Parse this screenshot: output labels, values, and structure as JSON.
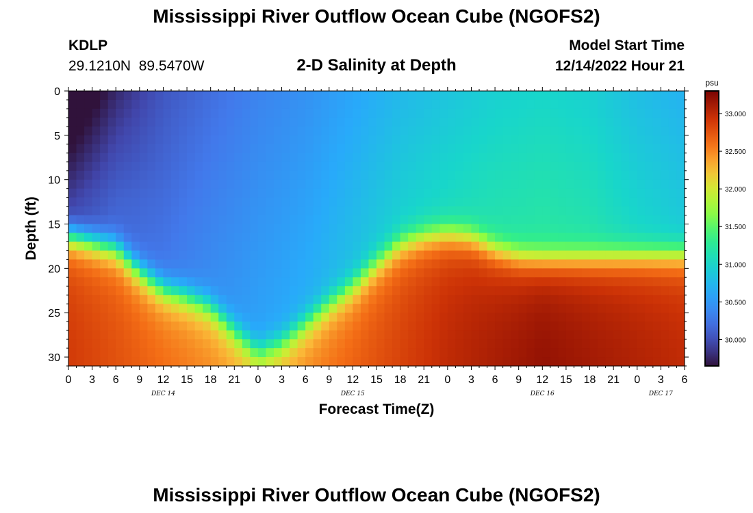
{
  "header": {
    "title": "Mississippi River Outflow Ocean Cube (NGOFS2)",
    "station": "KDLP",
    "coords": "29.1210N  89.5470W",
    "subtitle": "2-D Salinity at Depth",
    "model_label": "Model Start Time",
    "model_time": "12/14/2022 Hour 21"
  },
  "footer": {
    "title": "Mississippi River Outflow Ocean Cube (NGOFS2)"
  },
  "chart_data": {
    "type": "heatmap",
    "xlabel": "Forecast Time(Z)",
    "ylabel": "Depth (ft)",
    "x_ticks": [
      "0",
      "3",
      "6",
      "9",
      "12",
      "15",
      "18",
      "21",
      "0",
      "3",
      "6",
      "9",
      "12",
      "15",
      "18",
      "21",
      "0",
      "3",
      "6",
      "9",
      "12",
      "15",
      "18",
      "21",
      "0",
      "3",
      "6"
    ],
    "x_date_labels": [
      {
        "label": "DEC 14",
        "hour": 12
      },
      {
        "label": "DEC 15",
        "hour": 36
      },
      {
        "label": "DEC 16",
        "hour": 60
      },
      {
        "label": "DEC 17",
        "hour": 75
      }
    ],
    "xlim_hours": [
      0,
      78
    ],
    "y_ticks": [
      0,
      5,
      10,
      15,
      20,
      25,
      30
    ],
    "ylim": [
      0,
      31
    ],
    "y_inverted": true,
    "colorbar": {
      "unit": "psu",
      "range": [
        29.65,
        33.3
      ],
      "ticks": [
        "30.000",
        "30.500",
        "31.000",
        "31.500",
        "32.000",
        "32.500",
        "33.000"
      ],
      "tick_values": [
        30.0,
        30.5,
        31.0,
        31.5,
        32.0,
        32.5,
        33.0
      ],
      "colormap": "turbo"
    },
    "interface_depth_ft": [
      [
        0,
        16.2
      ],
      [
        6,
        17.6
      ],
      [
        9,
        20.2
      ],
      [
        12,
        22.2
      ],
      [
        15,
        23.0
      ],
      [
        18,
        24.2
      ],
      [
        21,
        26.8
      ],
      [
        24,
        29.2
      ],
      [
        27,
        28.2
      ],
      [
        30,
        26.0
      ],
      [
        33,
        23.8
      ],
      [
        36,
        21.8
      ],
      [
        39,
        19.2
      ],
      [
        42,
        17.0
      ],
      [
        45,
        16.1
      ],
      [
        48,
        15.8
      ],
      [
        51,
        16.2
      ],
      [
        54,
        17.6
      ],
      [
        57,
        18.4
      ],
      [
        60,
        18.6
      ],
      [
        66,
        18.5
      ],
      [
        72,
        18.3
      ],
      [
        78,
        18.2
      ]
    ],
    "surface_salinity": [
      [
        0,
        29.7
      ],
      [
        6,
        29.95
      ],
      [
        12,
        30.05
      ],
      [
        18,
        30.2
      ],
      [
        24,
        30.35
      ],
      [
        30,
        30.45
      ],
      [
        36,
        30.6
      ],
      [
        42,
        30.75
      ],
      [
        48,
        30.85
      ],
      [
        54,
        30.95
      ],
      [
        60,
        31.0
      ],
      [
        66,
        30.95
      ],
      [
        72,
        30.8
      ],
      [
        78,
        30.7
      ]
    ],
    "bottom_salinity": [
      [
        0,
        32.9
      ],
      [
        24,
        32.4
      ],
      [
        48,
        33.0
      ],
      [
        60,
        33.2
      ],
      [
        78,
        33.0
      ]
    ]
  }
}
